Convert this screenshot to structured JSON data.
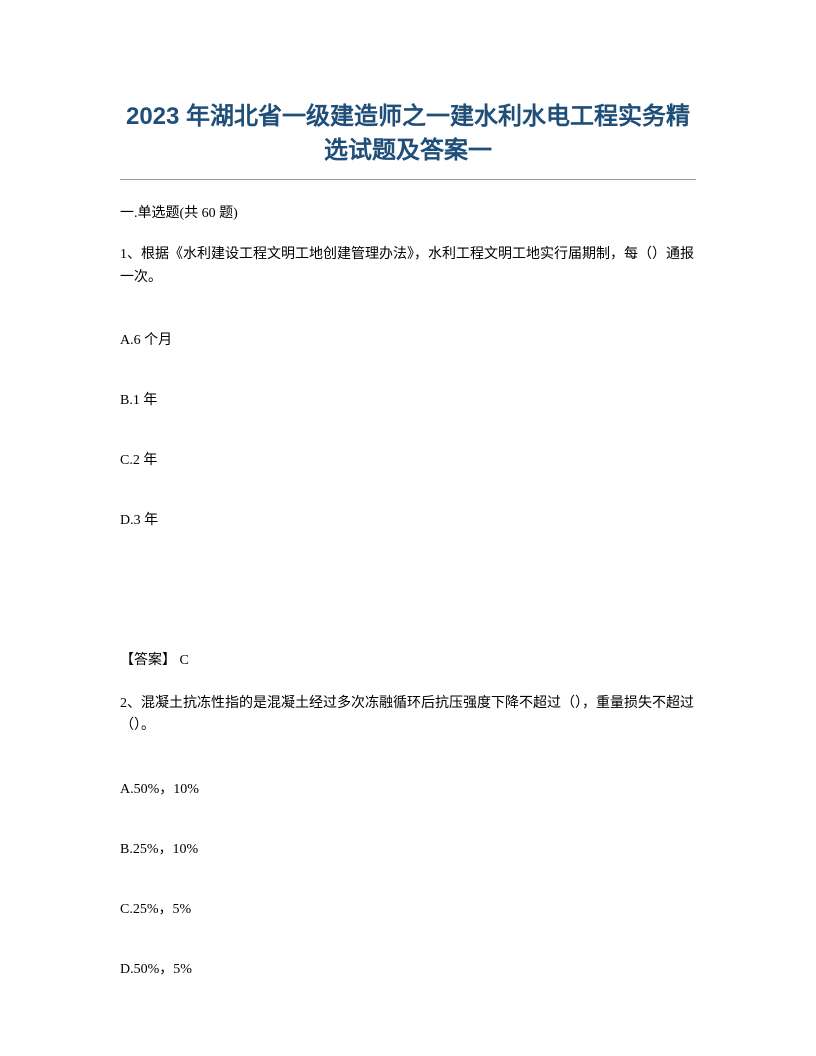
{
  "title": "2023 年湖北省一级建造师之一建水利水电工程实务精选试题及答案一",
  "section_header": "一.单选题(共 60 题)",
  "question1": {
    "text": "1、根据《水利建设工程文明工地创建管理办法》，水利工程文明工地实行届期制，每（）通报一次。",
    "options": {
      "a": "A.6 个月",
      "b": "B.1 年",
      "c": "C.2 年",
      "d": "D.3 年"
    },
    "answer": "【答案】 C"
  },
  "question2": {
    "text": "2、混凝土抗冻性指的是混凝土经过多次冻融循环后抗压强度下降不超过（），重量损失不超过（）。",
    "options": {
      "a": "A.50%，10%",
      "b": "B.25%，10%",
      "c": "C.25%，5%",
      "d": "D.50%，5%"
    }
  },
  "styling": {
    "page_bg": "#ffffff",
    "title_color": "#1f4e79",
    "text_color": "#000000",
    "divider_color": "#999999",
    "title_fontsize": 24,
    "body_fontsize": 14
  }
}
